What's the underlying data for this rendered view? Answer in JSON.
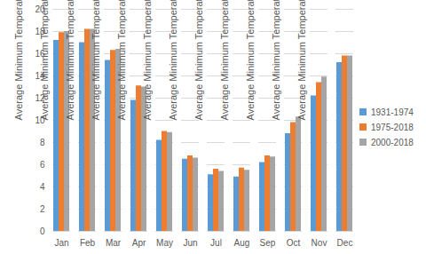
{
  "chart_data": {
    "type": "bar",
    "ylabel": "Average Minimum Temperature (°C)",
    "categories": [
      "Jan",
      "Feb",
      "Mar",
      "Apr",
      "May",
      "Jun",
      "Jul",
      "Aug",
      "Sep",
      "Oct",
      "Nov",
      "Dec"
    ],
    "series": [
      {
        "name": "1931-1974",
        "color": "#5b9bd5",
        "values": [
          17.2,
          17.0,
          15.4,
          11.8,
          8.2,
          6.5,
          5.1,
          4.9,
          6.2,
          8.8,
          12.2,
          15.2
        ]
      },
      {
        "name": "1975-2018",
        "color": "#ed7d31",
        "values": [
          17.9,
          18.2,
          16.3,
          13.1,
          9.0,
          6.8,
          5.6,
          5.7,
          6.8,
          9.8,
          13.4,
          15.8
        ]
      },
      {
        "name": "2000-2018",
        "color": "#a5a5a5",
        "values": [
          18.0,
          18.2,
          16.4,
          13.0,
          8.9,
          6.6,
          5.4,
          5.5,
          6.7,
          10.3,
          13.9,
          15.8
        ]
      }
    ],
    "ylim": [
      0,
      20
    ],
    "yticks": [
      0,
      2,
      4,
      6,
      8,
      10,
      12,
      14,
      16,
      18,
      20
    ],
    "grid": true,
    "legend": "right"
  }
}
